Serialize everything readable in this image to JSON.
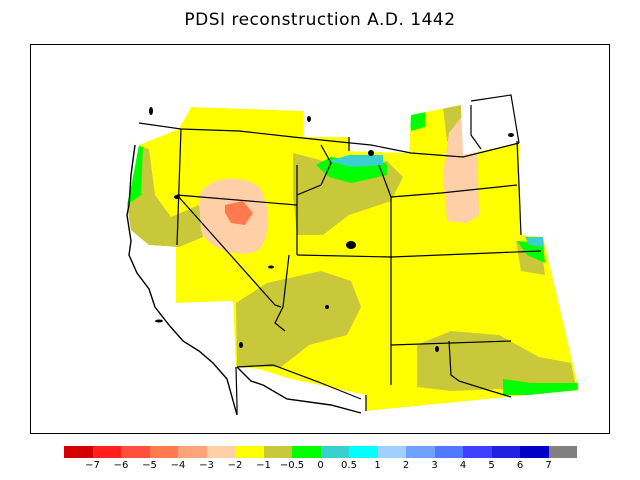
{
  "title": "PDSI reconstruction A.D. 1442",
  "legend": {
    "colors": [
      "#d40000",
      "#ff1f1f",
      "#ff4f3f",
      "#ff7a4f",
      "#ffa37a",
      "#ffd0a8",
      "#ffff00",
      "#c8c83a",
      "#00ff00",
      "#3ad0d0",
      "#00ffff",
      "#a0d0ff",
      "#70a0ff",
      "#5078ff",
      "#3f3fff",
      "#2020e0",
      "#0000c8",
      "#808080"
    ],
    "labels": [
      "−7",
      "−6",
      "−5",
      "−4",
      "−3",
      "−2",
      "−1",
      "−0.5",
      "0",
      "0.5",
      "1",
      "2",
      "3",
      "4",
      "5",
      "6",
      "7"
    ]
  },
  "map_colors": {
    "pdsi_neg1_to_neg05": "#c8c83a",
    "pdsi_neg2_to_neg1": "#ffff00",
    "pdsi_neg3_to_neg2": "#ffd0a8",
    "pdsi_neg4_to_neg3": "#ff7a4f",
    "pdsi_0_to_05": "#00ff00",
    "pdsi_05_to_1": "#3ad0d0"
  }
}
